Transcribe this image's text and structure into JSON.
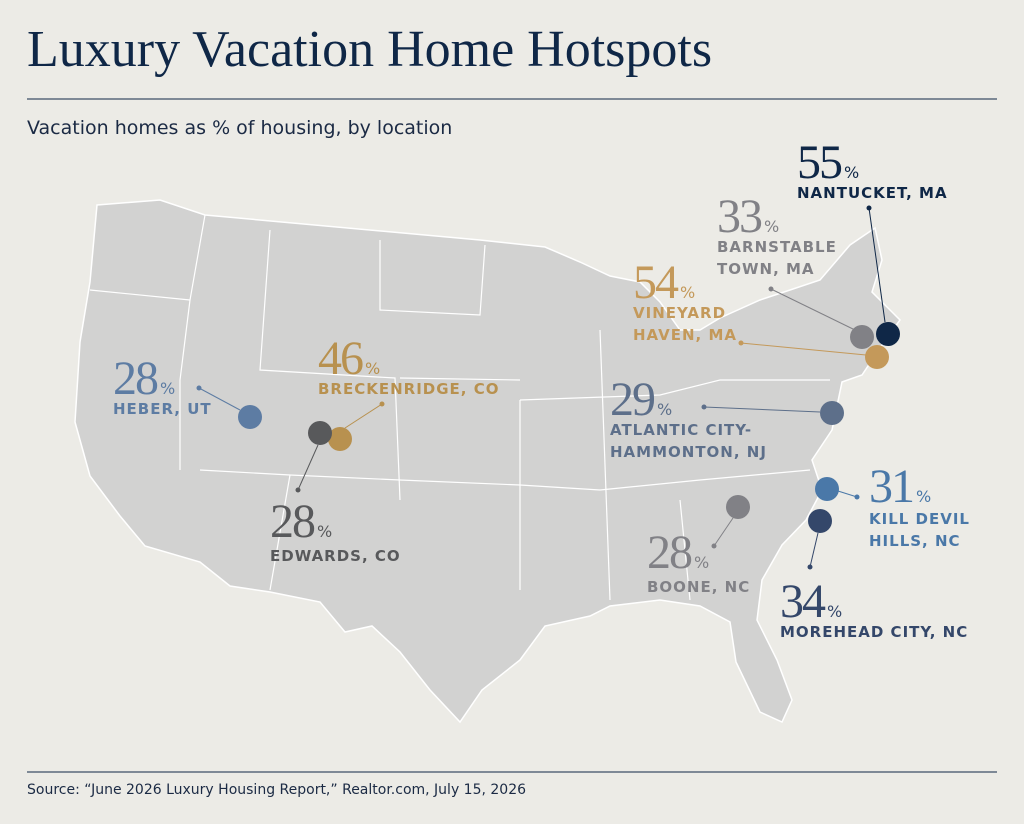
{
  "title": "Luxury Vacation Home Hotspots",
  "subtitle": "Vacation homes as % of housing, by location",
  "unit": "%",
  "locations": [
    {
      "value": 55,
      "label_lines": [
        "NANTUCKET, MA"
      ],
      "color": "#0f2747"
    },
    {
      "value": 33,
      "label_lines": [
        "BARNSTABLE",
        "TOWN, MA"
      ],
      "color": "#818186"
    },
    {
      "value": 54,
      "label_lines": [
        "VINEYARD",
        "HAVEN, MA"
      ],
      "color": "#c4995a"
    },
    {
      "value": 28,
      "label_lines": [
        "HEBER, UT"
      ],
      "color": "#5d7ca3"
    },
    {
      "value": 46,
      "label_lines": [
        "BRECKENRIDGE, CO"
      ],
      "color": "#b8914f"
    },
    {
      "value": 28,
      "label_lines": [
        "EDWARDS, CO"
      ],
      "color": "#58595b"
    },
    {
      "value": 29,
      "label_lines": [
        "ATLANTIC CITY-",
        "HAMMONTON, NJ"
      ],
      "color": "#5d6f8a"
    },
    {
      "value": 31,
      "label_lines": [
        "KILL DEVIL",
        "HILLS, NC"
      ],
      "color": "#4a78a8"
    },
    {
      "value": 34,
      "label_lines": [
        "MOREHEAD CITY, NC"
      ],
      "color": "#34476a"
    },
    {
      "value": 28,
      "label_lines": [
        "BOONE, NC"
      ],
      "color": "#818186"
    }
  ],
  "source": "Source: “June 2026 Luxury Housing Report,” Realtor.com, July 15, 2026"
}
